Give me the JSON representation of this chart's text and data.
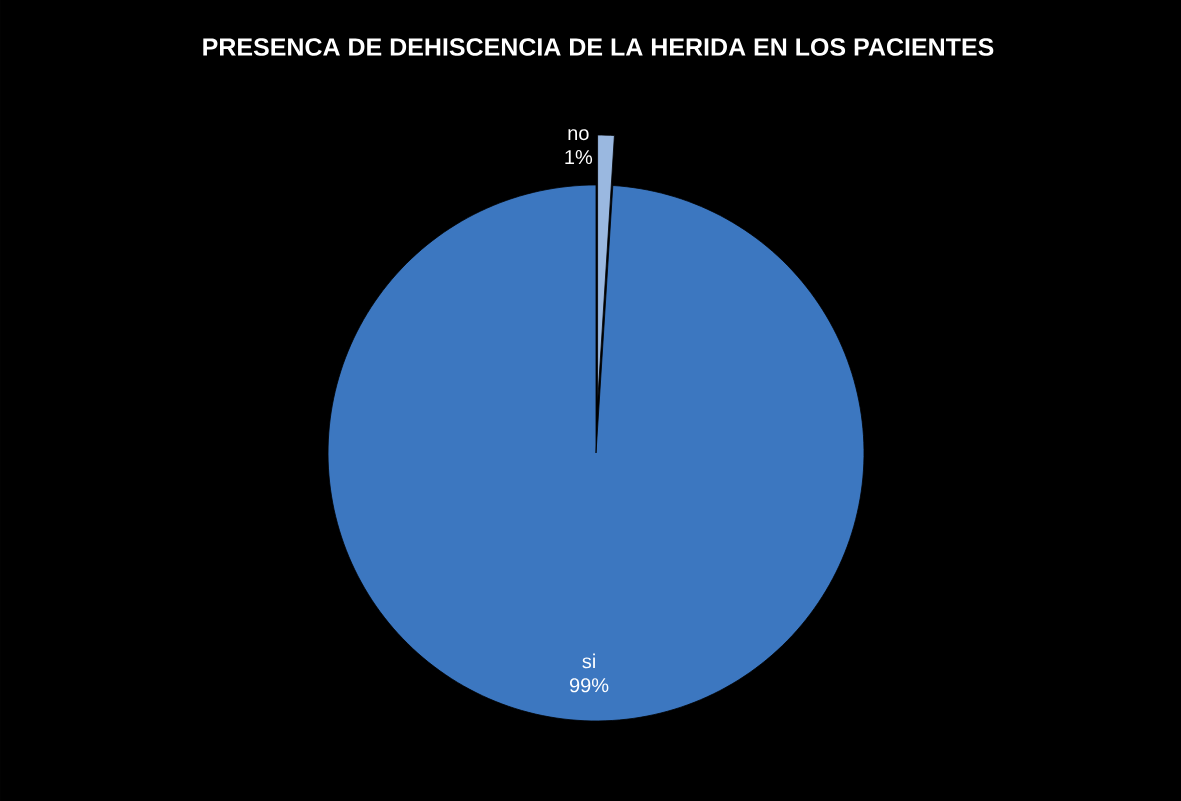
{
  "chart_data": {
    "type": "pie",
    "title": "PRESENCA DE DEHISCENCIA DE LA HERIDA EN LOS PACIENTES",
    "categories": [
      "no",
      "si"
    ],
    "values": [
      1,
      99
    ],
    "value_labels": [
      "1%",
      "99%"
    ],
    "colors": [
      "#9ab8e0",
      "#3c77c0"
    ]
  }
}
